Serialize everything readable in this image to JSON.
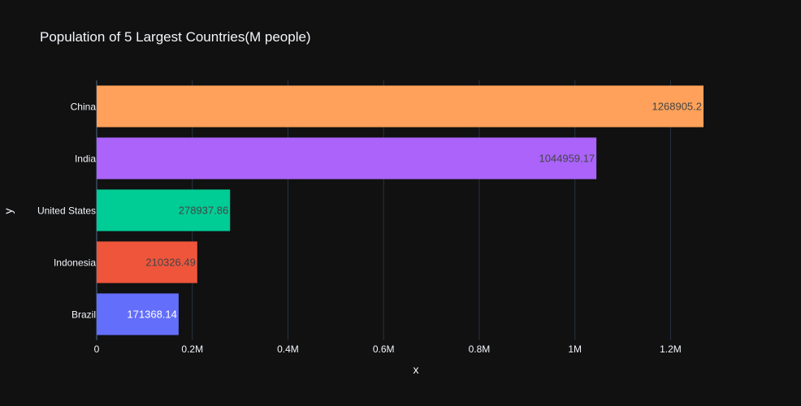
{
  "chart_data": {
    "type": "bar",
    "orientation": "horizontal",
    "title": "Population of 5 Largest Countries(M people)",
    "xlabel": "x",
    "ylabel": "y",
    "categories": [
      "Brazil",
      "Indonesia",
      "United States",
      "India",
      "China"
    ],
    "values": [
      171368.14,
      210326.49,
      278937.86,
      1044959.17,
      1268905.2
    ],
    "value_labels": [
      "171368.14",
      "210326.49",
      "278937.86",
      "1044959.17",
      "1268905.2"
    ],
    "bar_colors": [
      "#636efa",
      "#ef553b",
      "#00cc96",
      "#ab63fa",
      "#ffa15a"
    ],
    "value_label_colors": [
      "#ffffff",
      "#444444",
      "#444444",
      "#444444",
      "#444444"
    ],
    "xlim": [
      0,
      1268905.2
    ],
    "xticks": [
      0,
      200000,
      400000,
      600000,
      800000,
      1000000,
      1200000
    ],
    "xtick_labels": [
      "0",
      "0.2M",
      "0.4M",
      "0.6M",
      "0.8M",
      "1M",
      "1.2M"
    ],
    "grid": true,
    "legend": false,
    "colors": {
      "background": "#111111",
      "grid": "#283442",
      "text": "#f2f5fa"
    }
  }
}
